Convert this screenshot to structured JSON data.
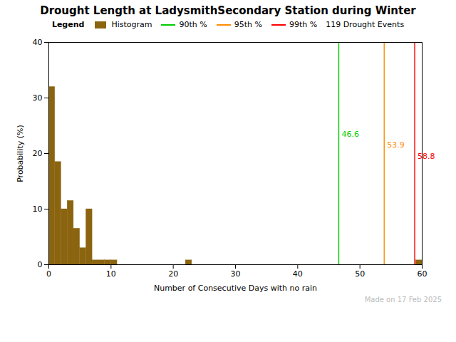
{
  "chart_data": {
    "type": "histogram",
    "title": "Drought Length at LadysmithSecondary Station during Winter",
    "xlabel": "Number of Consecutive Days with no rain",
    "ylabel": "Probability (%)",
    "bins": [
      0,
      1,
      2,
      3,
      4,
      5,
      6,
      7,
      8,
      9,
      10,
      11,
      12,
      13,
      14,
      15,
      16,
      17,
      18,
      19,
      20,
      21,
      22,
      23,
      24,
      25,
      26,
      27,
      28,
      29,
      30,
      31,
      32,
      33,
      34,
      35,
      36,
      37,
      38,
      39,
      40,
      41,
      42,
      43,
      44,
      45,
      46,
      47,
      48,
      49,
      50,
      51,
      52,
      53,
      54,
      55,
      56,
      57,
      58,
      59,
      60
    ],
    "series": [
      {
        "name": "Histogram",
        "type": "bar",
        "color": "#8B6410",
        "values": [
          32.0,
          18.5,
          10.0,
          11.5,
          6.5,
          3.0,
          10.0,
          0.8,
          0.8,
          0.8,
          0.8,
          0.0,
          0.0,
          0.0,
          0.0,
          0.0,
          0.0,
          0.0,
          0.0,
          0.0,
          0.0,
          0.0,
          0.8,
          0.0,
          0.0,
          0.0,
          0.0,
          0.0,
          0.0,
          0.0,
          0.0,
          0.0,
          0.0,
          0.0,
          0.0,
          0.0,
          0.0,
          0.0,
          0.0,
          0.0,
          0.0,
          0.0,
          0.0,
          0.0,
          0.0,
          0.0,
          0.0,
          0.0,
          0.0,
          0.0,
          0.0,
          0.0,
          0.0,
          0.0,
          0.0,
          0.0,
          0.0,
          0.0,
          0.0,
          0.8
        ]
      },
      {
        "name": "90th %",
        "type": "vline",
        "color": "#00CC00",
        "x": 46.6,
        "label_y": 23.5
      },
      {
        "name": "95th %",
        "type": "vline",
        "color": "#FF8C00",
        "x": 53.9,
        "label_y": 21.5
      },
      {
        "name": "99th %",
        "type": "vline",
        "color": "#FF0000",
        "x": 58.8,
        "label_y": 19.5
      }
    ],
    "legend": "upper right",
    "legend_title": "Legend",
    "legend_note": "119 Drought Events",
    "annotations": [
      {
        "text": "Made on 17 Feb 2025",
        "color": "#BBBBBB"
      }
    ],
    "xlim": [
      0,
      60
    ],
    "ylim": [
      0,
      40
    ],
    "xticks": [
      0,
      10,
      20,
      30,
      40,
      50,
      60
    ],
    "yticks": [
      0,
      10,
      20,
      30,
      40
    ],
    "grid": false
  }
}
